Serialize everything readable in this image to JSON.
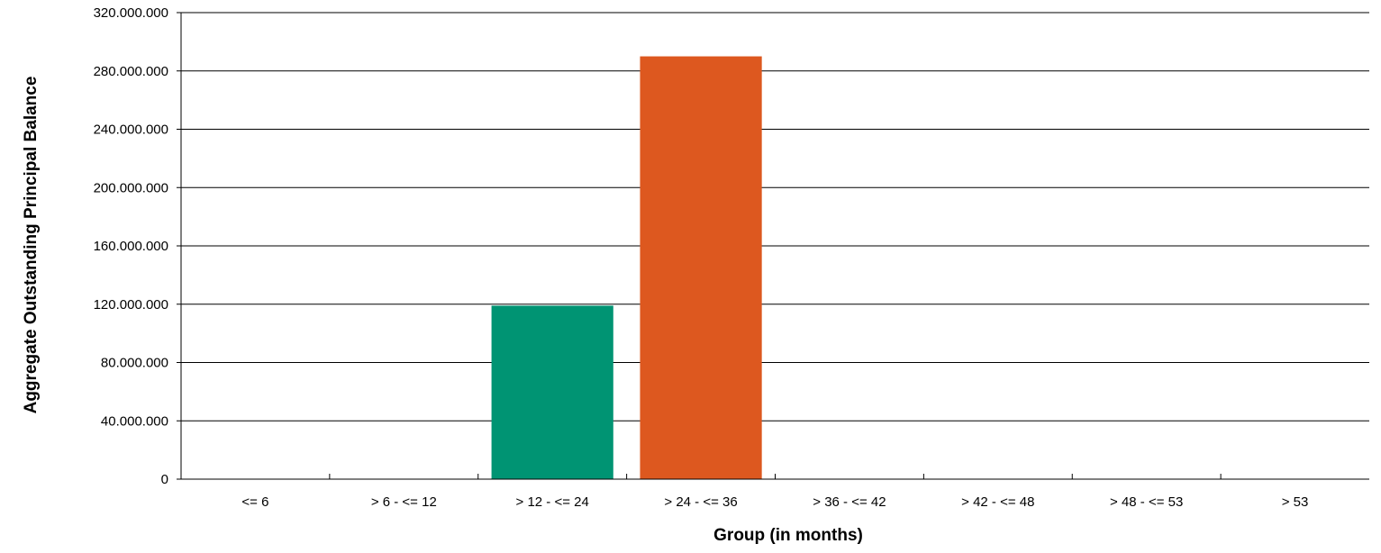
{
  "chart_data": {
    "type": "bar",
    "title": "",
    "xlabel": "Group (in months)",
    "ylabel": "Aggregate Outstanding Principal Balance",
    "categories": [
      "<= 6",
      "> 6 - <= 12",
      "> 12 - <= 24",
      "> 24 - <= 36",
      "> 36 - <= 42",
      "> 42 - <= 48",
      "> 48 - <= 53",
      "> 53"
    ],
    "values": [
      0,
      0,
      119000000,
      290000000,
      0,
      0,
      0,
      0
    ],
    "bar_colors": [
      "#009473",
      "#009473",
      "#009473",
      "#DD581F",
      "#009473",
      "#009473",
      "#009473",
      "#009473"
    ],
    "ylim": [
      0,
      320000000
    ],
    "yticks": [
      0,
      40000000,
      80000000,
      120000000,
      160000000,
      200000000,
      240000000,
      280000000,
      320000000
    ],
    "ytick_labels": [
      "0",
      "40.000.000",
      "80.000.000",
      "120.000.000",
      "160.000.000",
      "200.000.000",
      "240.000.000",
      "280.000.000",
      "320.000.000"
    ],
    "grid": true,
    "legend": "none"
  }
}
